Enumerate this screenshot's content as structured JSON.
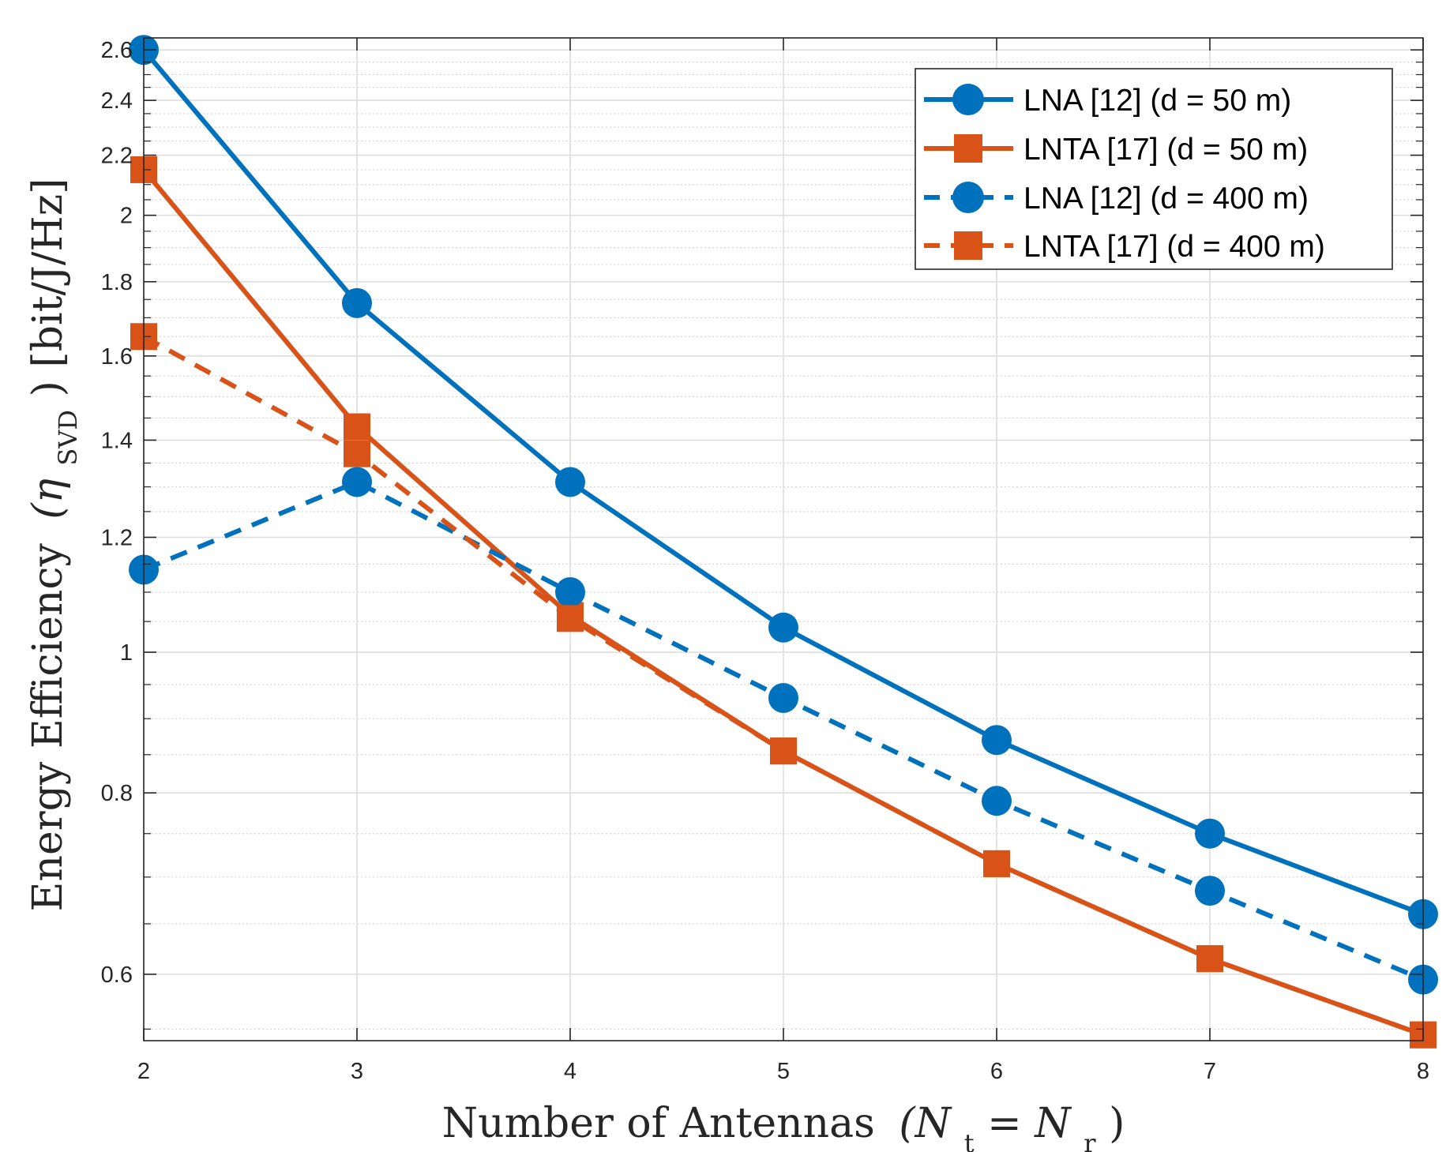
{
  "chart_data": {
    "type": "line",
    "title": "",
    "xlabel_main": "Number of Antennas",
    "xlabel_math": "(N",
    "xlabel_sub1": "t",
    "xlabel_eq": " = N",
    "xlabel_sub2": "r",
    "xlabel_close": ")",
    "ylabel_main": "Energy Efficiency",
    "ylabel_math": "(η",
    "ylabel_sub": "SVD",
    "ylabel_close": ") [bit/J/Hz]",
    "x": [
      2,
      3,
      4,
      5,
      6,
      7,
      8
    ],
    "xlim": [
      2,
      8
    ],
    "ylim": [
      0.54,
      2.65
    ],
    "yscale": "log",
    "grid": true,
    "minor_grid": true,
    "xticks": [
      2,
      3,
      4,
      5,
      6,
      7,
      8
    ],
    "xtick_labels": [
      "2",
      "3",
      "4",
      "5",
      "6",
      "7",
      "8"
    ],
    "yticks": [
      0.6,
      0.8,
      1,
      1.2,
      1.4,
      1.6,
      1.8,
      2,
      2.2,
      2.4,
      2.6
    ],
    "ytick_labels": [
      "0.6",
      "0.8",
      "1",
      "1.2",
      "1.4",
      "1.6",
      "1.8",
      "2",
      "2.2",
      "2.4",
      "2.6"
    ],
    "legend_position": "top-right",
    "series": [
      {
        "name": "LNA [12] (d = 50 m)",
        "values": [
          2.6,
          1.74,
          1.31,
          1.04,
          0.87,
          0.75,
          0.66
        ],
        "color": "#0072BD",
        "line": "solid",
        "marker": "circle"
      },
      {
        "name": "LNTA [17] (d = 50 m)",
        "values": [
          2.15,
          1.43,
          1.06,
          0.855,
          0.715,
          0.615,
          0.545
        ],
        "color": "#D95319",
        "line": "solid",
        "marker": "square"
      },
      {
        "name": "LNA [12] (d = 400 m)",
        "values": [
          1.14,
          1.31,
          1.1,
          0.93,
          0.79,
          0.685,
          0.595
        ],
        "color": "#0072BD",
        "line": "dashed",
        "marker": "circle"
      },
      {
        "name": "LNTA [17] (d = 400 m)",
        "values": [
          1.65,
          1.37,
          1.055,
          0.855,
          0.715,
          0.615,
          0.545
        ],
        "color": "#D95319",
        "line": "dashed",
        "marker": "square"
      }
    ]
  }
}
